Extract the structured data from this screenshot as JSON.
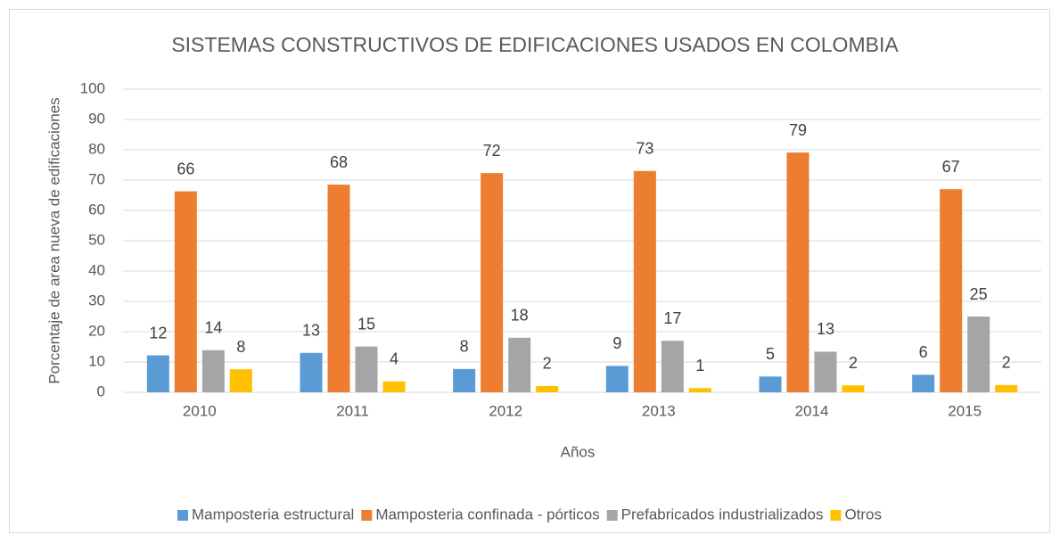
{
  "chart_data": {
    "type": "bar",
    "title": "SISTEMAS CONSTRUCTIVOS DE EDIFICACIONES USADOS EN COLOMBIA",
    "x_label": "Años",
    "y_label": "Porcentaje de area nueva de edificaciones",
    "categories": [
      "2010",
      "2011",
      "2012",
      "2013",
      "2014",
      "2015"
    ],
    "series": [
      {
        "name": "Mamposteria estructural",
        "color": "#5b9bd5",
        "values": [
          12.2,
          13,
          7.7,
          8.7,
          5.2,
          5.8
        ],
        "value_labels": [
          "12",
          "13",
          "8",
          "9",
          "5",
          "6"
        ]
      },
      {
        "name": "Mamposteria confinada - pórticos",
        "color": "#ed7d31",
        "values": [
          66.3,
          68.5,
          72.3,
          73,
          79.1,
          67
        ],
        "value_labels": [
          "66",
          "68",
          "72",
          "73",
          "79",
          "67"
        ]
      },
      {
        "name": "Prefabricados industrializados",
        "color": "#a5a5a5",
        "values": [
          13.9,
          15.1,
          18,
          17,
          13.4,
          25
        ],
        "value_labels": [
          "14",
          "15",
          "18",
          "17",
          "13",
          "25"
        ]
      },
      {
        "name": "Otros",
        "color": "#ffc000",
        "values": [
          7.6,
          3.6,
          2.1,
          1.4,
          2.3,
          2.4
        ],
        "value_labels": [
          "8",
          "4",
          "2",
          "1",
          "2",
          "2"
        ]
      }
    ],
    "ylim": [
      0,
      100
    ],
    "yticks": [
      0,
      10,
      20,
      30,
      40,
      50,
      60,
      70,
      80,
      90,
      100
    ],
    "grid": true,
    "legend": "bottom"
  }
}
